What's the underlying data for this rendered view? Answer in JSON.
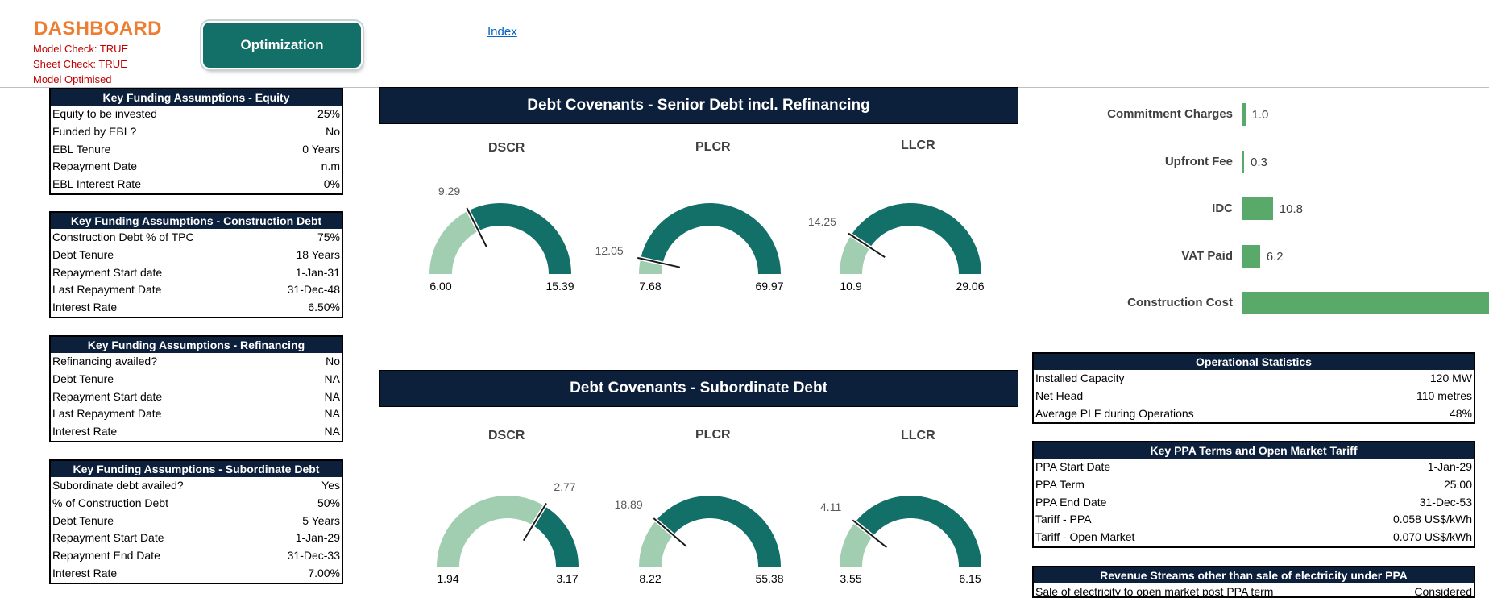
{
  "header": {
    "title": "DASHBOARD",
    "checks": [
      "Model Check: TRUE",
      "Sheet Check: TRUE",
      "Model Optimised"
    ],
    "optimization_button": "Optimization",
    "index_link": "Index"
  },
  "colors": {
    "navy": "#0c1f3b",
    "teal": "#137068",
    "light_green": "#a1cdb0",
    "bar_green": "#59a96a",
    "orange": "#ed7d31",
    "red": "#c00000"
  },
  "equity": {
    "title": "Key Funding Assumptions - Equity",
    "rows": [
      {
        "label": "Equity to be invested",
        "value": "25%"
      },
      {
        "label": "Funded by EBL?",
        "value": "No"
      },
      {
        "label": "EBL Tenure",
        "value": "0 Years"
      },
      {
        "label": "Repayment Date",
        "value": "n.m"
      },
      {
        "label": "EBL Interest Rate",
        "value": "0%"
      }
    ]
  },
  "construction": {
    "title": "Key Funding Assumptions - Construction Debt",
    "rows": [
      {
        "label": "Construction Debt % of TPC",
        "value": "75%"
      },
      {
        "label": "Debt Tenure",
        "value": "18 Years"
      },
      {
        "label": "Repayment Start date",
        "value": "1-Jan-31"
      },
      {
        "label": "Last Repayment Date",
        "value": "31-Dec-48"
      },
      {
        "label": "Interest Rate",
        "value": "6.50%"
      }
    ]
  },
  "refinancing": {
    "title": "Key Funding Assumptions - Refinancing",
    "rows": [
      {
        "label": "Refinancing availed?",
        "value": "No"
      },
      {
        "label": "Debt Tenure",
        "value": "NA"
      },
      {
        "label": "Repayment Start date",
        "value": "NA"
      },
      {
        "label": "Last Repayment Date",
        "value": "NA"
      },
      {
        "label": "Interest Rate",
        "value": "NA"
      }
    ]
  },
  "subordinate": {
    "title": "Key Funding Assumptions - Subordinate Debt",
    "rows": [
      {
        "label": "Subordinate debt availed?",
        "value": "Yes"
      },
      {
        "label": "% of Construction Debt",
        "value": "50%"
      },
      {
        "label": "Debt Tenure",
        "value": "5 Years"
      },
      {
        "label": "Repayment Start Date",
        "value": "1-Jan-29"
      },
      {
        "label": "Repayment End Date",
        "value": "31-Dec-33"
      },
      {
        "label": "Interest Rate",
        "value": "7.00%"
      }
    ]
  },
  "senior_banner": "Debt Covenants - Senior Debt incl. Refinancing",
  "sub_banner": "Debt Covenants - Subordinate Debt",
  "senior_gauges": [
    {
      "name": "DSCR",
      "min": 6.0,
      "max": 15.39,
      "value": 9.29,
      "min_label": "6.00",
      "max_label": "15.39",
      "value_label": "9.29"
    },
    {
      "name": "PLCR",
      "min": 7.68,
      "max": 69.97,
      "value": 12.05,
      "min_label": "7.68",
      "max_label": "69.97",
      "value_label": "12.05"
    },
    {
      "name": "LLCR",
      "min": 10.9,
      "max": 29.06,
      "value": 14.25,
      "min_label": "10.9",
      "max_label": "29.06",
      "value_label": "14.25"
    }
  ],
  "sub_gauges": [
    {
      "name": "DSCR",
      "min": 1.94,
      "max": 3.17,
      "value": 2.77,
      "min_label": "1.94",
      "max_label": "3.17",
      "value_label": "2.77"
    },
    {
      "name": "PLCR",
      "min": 8.22,
      "max": 55.38,
      "value": 18.89,
      "min_label": "8.22",
      "max_label": "55.38",
      "value_label": "18.89"
    },
    {
      "name": "LLCR",
      "min": 3.55,
      "max": 6.15,
      "value": 4.11,
      "min_label": "3.55",
      "max_label": "6.15",
      "value_label": "4.11"
    }
  ],
  "chart_data": {
    "type": "bar",
    "orientation": "horizontal",
    "categories": [
      "Commitment Charges",
      "Upfront Fee",
      "IDC",
      "VAT Paid",
      "Construction Cost"
    ],
    "values": [
      1.0,
      0.3,
      10.8,
      6.2,
      null
    ],
    "value_labels": [
      "1.0",
      "0.3",
      "10.8",
      "6.2",
      ""
    ],
    "note_visible": "Construction Cost bar extends past visible area"
  },
  "operational": {
    "title": "Operational Statistics",
    "rows": [
      {
        "label": "Installed Capacity",
        "value": "120 MW"
      },
      {
        "label": "Net Head",
        "value": "110 metres"
      },
      {
        "label": "Average PLF during Operations",
        "value": "48%"
      }
    ]
  },
  "ppa": {
    "title": "Key PPA Terms and Open Market Tariff",
    "rows": [
      {
        "label": "PPA Start Date",
        "value": "1-Jan-29"
      },
      {
        "label": "PPA Term",
        "value": "25.00"
      },
      {
        "label": "PPA End Date",
        "value": "31-Dec-53"
      },
      {
        "label": "Tariff - PPA",
        "value": "0.058 US$/kWh"
      },
      {
        "label": "Tariff - Open Market",
        "value": "0.070 US$/kWh"
      }
    ]
  },
  "revenue": {
    "title": "Revenue Streams other than sale of electricity under PPA",
    "rows": [
      {
        "label": "Sale of electricity to open market post PPA term",
        "value": "Considered"
      }
    ]
  }
}
